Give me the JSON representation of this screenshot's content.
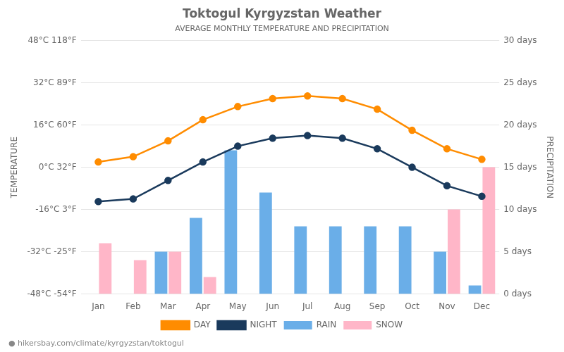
{
  "chart_data": {
    "type": "bar",
    "title": "Toktogul Kyrgyzstan Weather",
    "subtitle": "AVERAGE MONTHLY TEMPERATURE AND PRECIPITATION",
    "categories": [
      "Jan",
      "Feb",
      "Mar",
      "Apr",
      "May",
      "Jun",
      "Jul",
      "Aug",
      "Sep",
      "Oct",
      "Nov",
      "Dec"
    ],
    "series": [
      {
        "name": "DAY",
        "type": "line",
        "marker": "circle",
        "color": "#FF8C00",
        "values": [
          2,
          4,
          10,
          18,
          23,
          26,
          27,
          26,
          22,
          14,
          7,
          3
        ]
      },
      {
        "name": "NIGHT",
        "type": "line",
        "marker": "circle",
        "color": "#1a3a5c",
        "values": [
          -13,
          -12,
          -5,
          2,
          8,
          11,
          12,
          11,
          7,
          0,
          -7,
          -11
        ]
      },
      {
        "name": "RAIN",
        "type": "bar",
        "axis": "y2",
        "color": "#6aaee8",
        "values": [
          0,
          0,
          5,
          9,
          17,
          12,
          8,
          8,
          8,
          8,
          5,
          1
        ]
      },
      {
        "name": "SNOW",
        "type": "bar",
        "axis": "y2",
        "color": "#ffb6c8",
        "values": [
          6,
          4,
          5,
          2,
          0,
          0,
          0,
          0,
          0,
          0,
          10,
          15
        ]
      }
    ],
    "ylabel": "TEMPERATURE",
    "y2label": "PRECIPITATION",
    "ylim": [
      -48,
      48
    ],
    "yticks": [
      {
        "value": -48,
        "label": "-48°C -54°F"
      },
      {
        "value": -32,
        "label": "-32°C -25°F"
      },
      {
        "value": -16,
        "label": "-16°C 3°F"
      },
      {
        "value": 0,
        "label": "0°C 32°F"
      },
      {
        "value": 16,
        "label": "16°C 60°F"
      },
      {
        "value": 32,
        "label": "32°C 89°F"
      },
      {
        "value": 48,
        "label": "48°C 118°F"
      }
    ],
    "y2lim": [
      0,
      30
    ],
    "y2ticks": [
      {
        "value": 0,
        "label": "0 days"
      },
      {
        "value": 5,
        "label": "5 days"
      },
      {
        "value": 10,
        "label": "10 days"
      },
      {
        "value": 15,
        "label": "15 days"
      },
      {
        "value": 20,
        "label": "20 days"
      },
      {
        "value": 25,
        "label": "25 days"
      },
      {
        "value": 30,
        "label": "30 days"
      }
    ],
    "grid": true,
    "legend": "bottom",
    "annotations": [
      "● hikersbay.com/climate/kyrgyzstan/toktogul"
    ]
  }
}
